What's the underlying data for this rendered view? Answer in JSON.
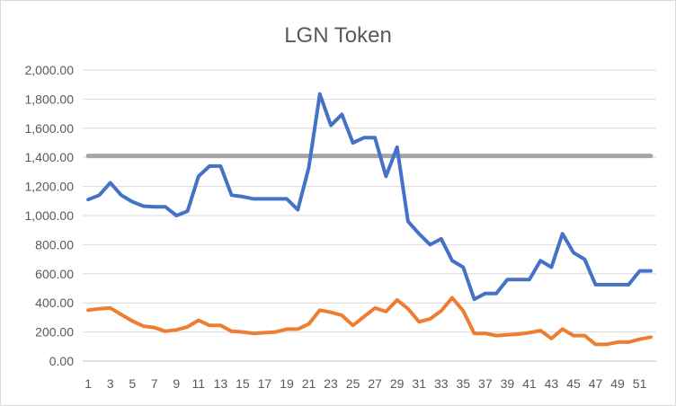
{
  "chart_data": {
    "type": "line",
    "title": "LGN Token",
    "xlabel": "",
    "ylabel": "",
    "ylim": [
      0,
      2000
    ],
    "y_ticks": [
      "0.00",
      "200.00",
      "400.00",
      "600.00",
      "800.00",
      "1,000.00",
      "1,200.00",
      "1,400.00",
      "1,600.00",
      "1,800.00",
      "2,000.00"
    ],
    "x_tick_labels": [
      "1",
      "3",
      "5",
      "7",
      "9",
      "11",
      "13",
      "15",
      "17",
      "19",
      "21",
      "23",
      "25",
      "27",
      "29",
      "31",
      "33",
      "35",
      "37",
      "39",
      "41",
      "43",
      "45",
      "47",
      "49",
      "51"
    ],
    "grid": "horizontal",
    "legend": "none",
    "x": [
      1,
      2,
      3,
      4,
      5,
      6,
      7,
      8,
      9,
      10,
      11,
      12,
      13,
      14,
      15,
      16,
      17,
      18,
      19,
      20,
      21,
      22,
      23,
      24,
      25,
      26,
      27,
      28,
      29,
      30,
      31,
      32,
      33,
      34,
      35,
      36,
      37,
      38,
      39,
      40,
      41,
      42,
      43,
      44,
      45,
      46,
      47,
      48,
      49,
      50,
      51,
      52
    ],
    "series": [
      {
        "color": "#4472c4",
        "values": [
          1110,
          1140,
          1225,
          1140,
          1095,
          1065,
          1060,
          1060,
          1000,
          1030,
          1270,
          1340,
          1340,
          1140,
          1130,
          1115,
          1115,
          1115,
          1115,
          1040,
          1330,
          1835,
          1620,
          1695,
          1500,
          1535,
          1535,
          1270,
          1470,
          960,
          875,
          800,
          840,
          690,
          645,
          425,
          465,
          465,
          560,
          560,
          560,
          690,
          645,
          875,
          745,
          700,
          525,
          525,
          525,
          525,
          620,
          620
        ]
      },
      {
        "color": "#ed7d31",
        "values": [
          350,
          360,
          365,
          320,
          275,
          240,
          230,
          205,
          215,
          235,
          280,
          245,
          245,
          205,
          200,
          190,
          195,
          200,
          220,
          220,
          255,
          350,
          335,
          315,
          245,
          305,
          365,
          340,
          420,
          360,
          270,
          290,
          345,
          435,
          345,
          190,
          190,
          175,
          180,
          185,
          195,
          210,
          155,
          220,
          175,
          175,
          115,
          115,
          130,
          130,
          150,
          165
        ]
      },
      {
        "color": "#a5a5a5",
        "values": [
          1410,
          1410,
          1410,
          1410,
          1410,
          1410,
          1410,
          1410,
          1410,
          1410,
          1410,
          1410,
          1410,
          1410,
          1410,
          1410,
          1410,
          1410,
          1410,
          1410,
          1410,
          1410,
          1410,
          1410,
          1410,
          1410,
          1410,
          1410,
          1410,
          1410,
          1410,
          1410,
          1410,
          1410,
          1410,
          1410,
          1410,
          1410,
          1410,
          1410,
          1410,
          1410,
          1410,
          1410,
          1410,
          1410,
          1410,
          1410,
          1410,
          1410,
          1410,
          1410
        ]
      }
    ]
  }
}
